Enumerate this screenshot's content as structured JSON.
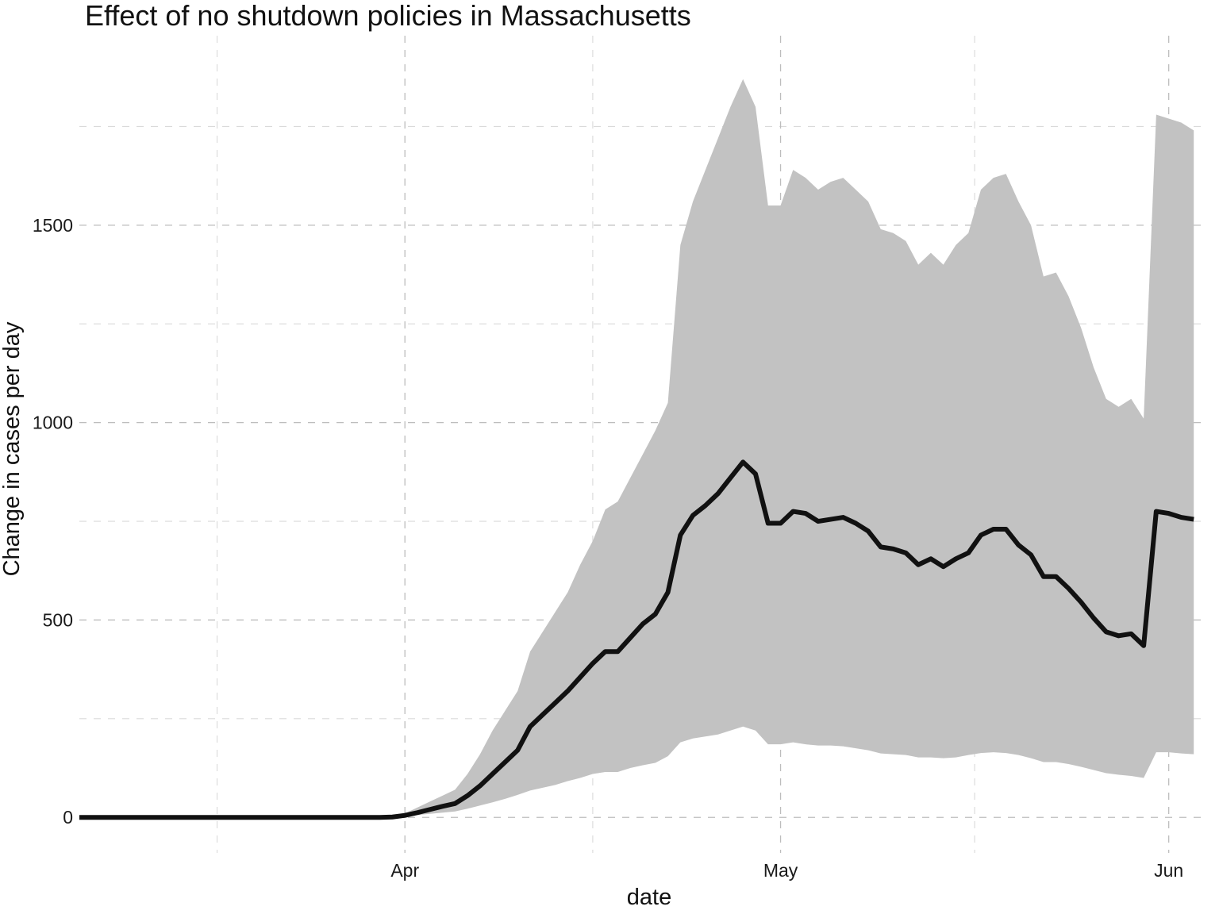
{
  "chart_data": {
    "type": "area",
    "title": "Effect of no shutdown policies in Massachusetts",
    "xlabel": "date",
    "ylabel": "Change in cases per day",
    "x_ticks": [
      {
        "date": "2020-04-01",
        "label": "Apr"
      },
      {
        "date": "2020-05-01",
        "label": "May"
      },
      {
        "date": "2020-06-01",
        "label": "Jun"
      }
    ],
    "y_ticks": [
      0,
      500,
      1000,
      1500
    ],
    "xlim": [
      "2020-03-06",
      "2020-06-04"
    ],
    "ylim": [
      -90,
      1980
    ],
    "grid": true,
    "colors": {
      "line": "#111111",
      "ribbon": "#c2c2c2"
    },
    "series": [
      {
        "x": [
          "2020-03-06",
          "2020-03-07",
          "2020-03-08",
          "2020-03-09",
          "2020-03-10",
          "2020-03-11",
          "2020-03-12",
          "2020-03-13",
          "2020-03-14",
          "2020-03-15",
          "2020-03-16",
          "2020-03-17",
          "2020-03-18",
          "2020-03-19",
          "2020-03-20",
          "2020-03-21",
          "2020-03-22",
          "2020-03-23",
          "2020-03-24",
          "2020-03-25",
          "2020-03-26",
          "2020-03-27",
          "2020-03-28",
          "2020-03-29",
          "2020-03-30",
          "2020-03-31",
          "2020-04-01",
          "2020-04-02",
          "2020-04-03",
          "2020-04-04",
          "2020-04-05",
          "2020-04-06",
          "2020-04-07",
          "2020-04-08",
          "2020-04-09",
          "2020-04-10",
          "2020-04-11",
          "2020-04-12",
          "2020-04-13",
          "2020-04-14",
          "2020-04-15",
          "2020-04-16",
          "2020-04-17",
          "2020-04-18",
          "2020-04-19",
          "2020-04-20",
          "2020-04-21",
          "2020-04-22",
          "2020-04-23",
          "2020-04-24",
          "2020-04-25",
          "2020-04-26",
          "2020-04-27",
          "2020-04-28",
          "2020-04-29",
          "2020-04-30",
          "2020-05-01",
          "2020-05-02",
          "2020-05-03",
          "2020-05-04",
          "2020-05-05",
          "2020-05-06",
          "2020-05-07",
          "2020-05-08",
          "2020-05-09",
          "2020-05-10",
          "2020-05-11",
          "2020-05-12",
          "2020-05-13",
          "2020-05-14",
          "2020-05-15",
          "2020-05-16",
          "2020-05-17",
          "2020-05-18",
          "2020-05-19",
          "2020-05-20",
          "2020-05-21",
          "2020-05-22",
          "2020-05-23",
          "2020-05-24",
          "2020-05-25",
          "2020-05-26",
          "2020-05-27",
          "2020-05-28",
          "2020-05-29",
          "2020-05-30",
          "2020-05-31",
          "2020-06-01",
          "2020-06-02",
          "2020-06-03"
        ],
        "y": [
          0,
          0,
          0,
          0,
          0,
          0,
          0,
          0,
          0,
          0,
          0,
          0,
          0,
          0,
          0,
          0,
          0,
          0,
          0,
          0,
          0,
          0,
          0,
          0,
          0,
          1,
          5,
          12,
          20,
          28,
          35,
          55,
          80,
          110,
          140,
          170,
          230,
          260,
          290,
          320,
          355,
          390,
          420,
          420,
          455,
          490,
          515,
          570,
          715,
          765,
          790,
          820,
          860,
          900,
          870,
          745,
          745,
          775,
          770,
          750,
          755,
          760,
          745,
          725,
          685,
          680,
          670,
          640,
          655,
          635,
          655,
          670,
          715,
          730,
          730,
          690,
          665,
          610,
          610,
          580,
          545,
          505,
          470,
          460,
          465,
          435,
          775,
          770,
          760,
          755
        ]
      }
    ],
    "band": {
      "lower": [
        0,
        0,
        0,
        0,
        0,
        0,
        0,
        0,
        0,
        0,
        0,
        0,
        0,
        0,
        0,
        0,
        0,
        0,
        0,
        0,
        0,
        0,
        0,
        0,
        0,
        1,
        3,
        6,
        9,
        12,
        15,
        22,
        30,
        38,
        47,
        57,
        68,
        75,
        82,
        92,
        100,
        110,
        115,
        115,
        125,
        132,
        138,
        155,
        190,
        200,
        205,
        210,
        220,
        230,
        220,
        185,
        185,
        190,
        185,
        182,
        182,
        180,
        175,
        170,
        162,
        160,
        158,
        152,
        152,
        150,
        152,
        158,
        163,
        165,
        163,
        158,
        150,
        140,
        140,
        135,
        128,
        120,
        112,
        108,
        105,
        100,
        165,
        165,
        162,
        160
      ],
      "upper": [
        0,
        0,
        0,
        0,
        0,
        0,
        0,
        0,
        0,
        0,
        0,
        0,
        0,
        0,
        0,
        0,
        0,
        0,
        0,
        0,
        0,
        0,
        0,
        0,
        0,
        2,
        10,
        25,
        40,
        55,
        70,
        110,
        160,
        220,
        270,
        320,
        420,
        470,
        520,
        570,
        640,
        700,
        780,
        800,
        860,
        920,
        980,
        1050,
        1450,
        1560,
        1640,
        1720,
        1800,
        1870,
        1800,
        1550,
        1550,
        1640,
        1620,
        1590,
        1610,
        1620,
        1590,
        1560,
        1490,
        1480,
        1460,
        1400,
        1430,
        1400,
        1450,
        1480,
        1590,
        1620,
        1630,
        1560,
        1500,
        1370,
        1380,
        1320,
        1240,
        1140,
        1060,
        1040,
        1060,
        1010,
        1780,
        1770,
        1760,
        1740
      ]
    }
  }
}
